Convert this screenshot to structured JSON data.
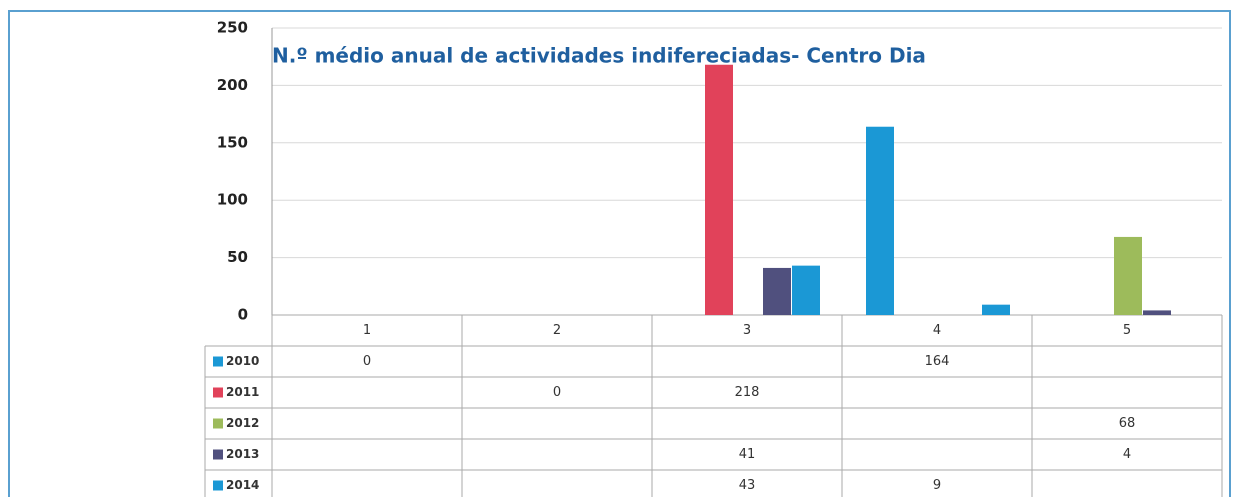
{
  "chart_data": {
    "type": "bar",
    "title": "N.º médio  anual  de actividades indifereciadas- Centro Dia",
    "categories": [
      "1",
      "2",
      "3",
      "4",
      "5"
    ],
    "series": [
      {
        "name": "2010",
        "color": "#1b98d5",
        "values": [
          0,
          null,
          null,
          164,
          null
        ]
      },
      {
        "name": "2011",
        "color": "#e1425a",
        "values": [
          null,
          0,
          218,
          null,
          null
        ]
      },
      {
        "name": "2012",
        "color": "#9dbb5b",
        "values": [
          null,
          null,
          null,
          null,
          68
        ]
      },
      {
        "name": "2013",
        "color": "#50507e",
        "values": [
          null,
          null,
          41,
          null,
          4
        ]
      },
      {
        "name": "2014",
        "color": "#1b98d5",
        "values": [
          null,
          null,
          43,
          9,
          null
        ]
      }
    ],
    "ylim": [
      0,
      250
    ],
    "yticks": [
      0,
      50,
      100,
      150,
      200,
      250
    ],
    "grid": true
  }
}
